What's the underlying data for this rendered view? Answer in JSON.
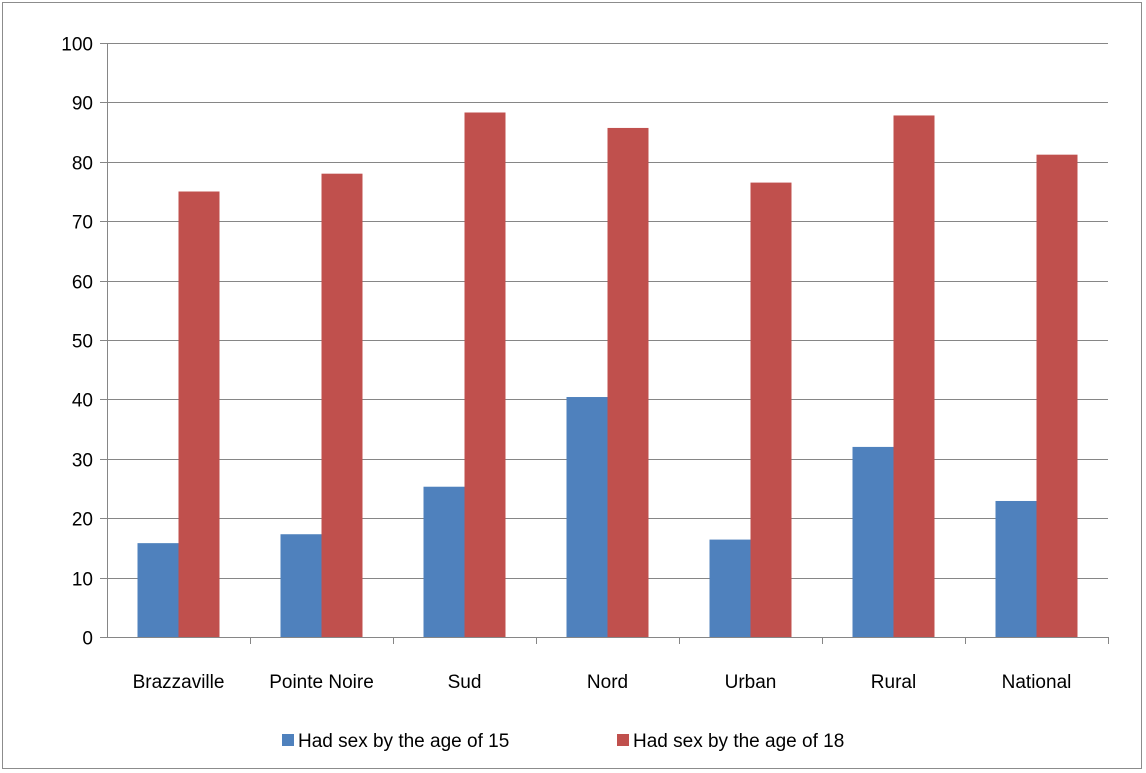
{
  "chart_data": {
    "type": "bar",
    "title": "",
    "xlabel": "",
    "ylabel": "",
    "categories": [
      "Brazzaville",
      "Pointe Noire",
      "Sud",
      "Nord",
      "Urban",
      "Rural",
      "National"
    ],
    "series": [
      {
        "name": "Had sex by the age of 15",
        "color": "#4f81bd",
        "values": [
          15.8,
          17.3,
          25.3,
          40.4,
          16.4,
          32.0,
          22.9
        ]
      },
      {
        "name": "Had sex by the age of 18",
        "color": "#c0504d",
        "values": [
          75.0,
          78.0,
          88.3,
          85.7,
          76.5,
          87.8,
          81.2
        ]
      }
    ],
    "ylim": [
      0,
      100
    ],
    "yticks": [
      0,
      10,
      20,
      30,
      40,
      50,
      60,
      70,
      80,
      90,
      100
    ],
    "grid": true,
    "gridline_color": "#868686",
    "legend_position": "bottom"
  }
}
